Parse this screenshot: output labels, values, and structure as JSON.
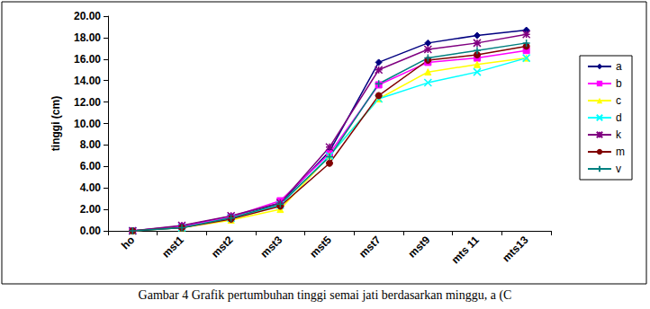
{
  "chart_data": {
    "type": "line",
    "title": "Gambar 4 Grafik pertumbuhan tinggi semai jati berdasarkan minggu, a (C",
    "y_label": "tinggi (cm)",
    "categories": [
      "ho",
      "mst1",
      "mst2",
      "mst3",
      "mst5",
      "mst7",
      "mst9",
      "mts 11",
      "mts13"
    ],
    "series": [
      {
        "name": "a",
        "color": "#000080",
        "marker": "diamond",
        "values": [
          0,
          0.45,
          1.35,
          2.6,
          7.4,
          15.7,
          17.5,
          18.2,
          18.7
        ]
      },
      {
        "name": "b",
        "color": "#ff00ff",
        "marker": "square",
        "values": [
          0,
          0.4,
          1.3,
          2.8,
          7.2,
          13.6,
          15.7,
          16.1,
          16.8
        ]
      },
      {
        "name": "c",
        "color": "#ffff00",
        "marker": "triangle",
        "values": [
          0,
          0.3,
          1.0,
          2.0,
          7.0,
          12.3,
          14.8,
          15.5,
          16.1
        ]
      },
      {
        "name": "d",
        "color": "#00ffff",
        "marker": "x",
        "values": [
          0,
          0.3,
          1.2,
          2.4,
          7.0,
          12.3,
          13.8,
          14.8,
          16.1
        ]
      },
      {
        "name": "k",
        "color": "#800080",
        "marker": "star",
        "values": [
          0,
          0.5,
          1.4,
          2.6,
          7.8,
          15.0,
          16.9,
          17.5,
          18.3
        ]
      },
      {
        "name": "m",
        "color": "#800000",
        "marker": "circle",
        "values": [
          0,
          0.3,
          1.1,
          2.3,
          6.3,
          12.6,
          15.9,
          16.4,
          17.2
        ]
      },
      {
        "name": "v",
        "color": "#008080",
        "marker": "plus",
        "values": [
          0,
          0.3,
          1.2,
          2.5,
          6.9,
          13.7,
          16.1,
          16.8,
          17.5
        ]
      }
    ],
    "ylim": [
      0,
      20
    ],
    "yticks": [
      {
        "value": 0,
        "label": "0.00"
      },
      {
        "value": 2,
        "label": "2.00"
      },
      {
        "value": 4,
        "label": "4.00"
      },
      {
        "value": 6,
        "label": "6.00"
      },
      {
        "value": 8,
        "label": "8.00"
      },
      {
        "value": 10,
        "label": "10.00"
      },
      {
        "value": 12,
        "label": "12.00"
      },
      {
        "value": 14,
        "label": "14.00"
      },
      {
        "value": 16,
        "label": "16.00"
      },
      {
        "value": 18,
        "label": "18.00"
      },
      {
        "value": 20,
        "label": "20.00"
      }
    ],
    "grid": false,
    "legend": "right"
  }
}
